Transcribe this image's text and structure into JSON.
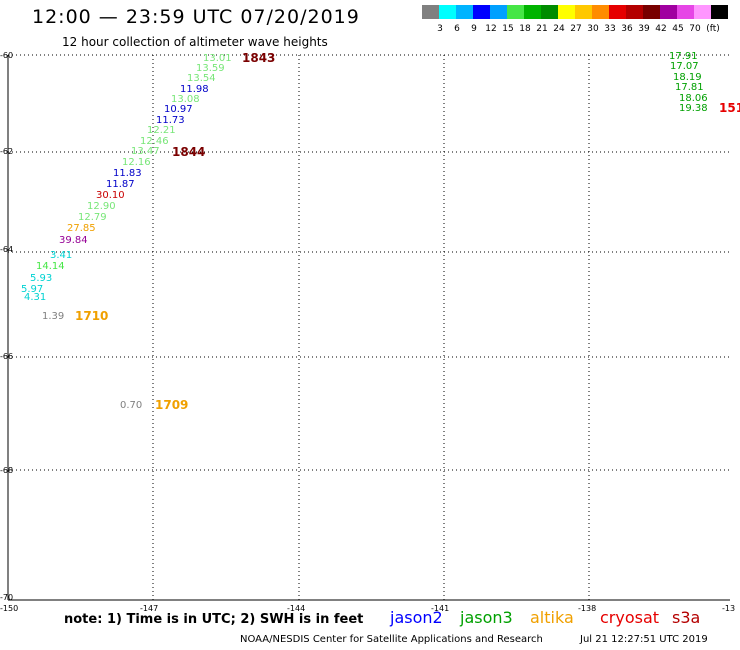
{
  "header": {
    "title": "12:00 — 23:59 UTC 07/20/2019",
    "subtitle": "12 hour collection of altimeter wave heights"
  },
  "legend_scale": {
    "colors": [
      "#808080",
      "#00ffff",
      "#00b4ff",
      "#0000ff",
      "#00a0ff",
      "#46e646",
      "#00b400",
      "#008c00",
      "#ffff00",
      "#ffc800",
      "#ff8c00",
      "#e60000",
      "#b40000",
      "#780000",
      "#a000a0",
      "#e646e6",
      "#ff96ff",
      "#000000"
    ],
    "labels": [
      "3",
      "6",
      "9",
      "12",
      "15",
      "18",
      "21",
      "24",
      "27",
      "30",
      "33",
      "36",
      "39",
      "42",
      "45",
      "70",
      "(ft)"
    ]
  },
  "axes": {
    "lat_labels": [
      "-60",
      "-62",
      "-64",
      "-66",
      "-68",
      "-70"
    ],
    "lon_labels": [
      "-150",
      "-147",
      "-144",
      "-141",
      "-138",
      "-13"
    ]
  },
  "points": [
    {
      "v": "13.01",
      "c": "#78e678"
    },
    {
      "v": "13.59",
      "c": "#78e678"
    },
    {
      "v": "13.54",
      "c": "#78e678"
    },
    {
      "v": "11.98",
      "c": "#0000c8"
    },
    {
      "v": "13.08",
      "c": "#78e678"
    },
    {
      "v": "10.97",
      "c": "#0000c8"
    },
    {
      "v": "11.73",
      "c": "#0000c8"
    },
    {
      "v": "12.21",
      "c": "#78e678"
    },
    {
      "v": "12.46",
      "c": "#78e678"
    },
    {
      "v": "13.47",
      "c": "#78e678"
    },
    {
      "v": "12.16",
      "c": "#78e678"
    },
    {
      "v": "11.83",
      "c": "#0000c8"
    },
    {
      "v": "11.87",
      "c": "#0000c8"
    },
    {
      "v": "30.10",
      "c": "#c80000"
    },
    {
      "v": "12.90",
      "c": "#78e678"
    },
    {
      "v": "12.79",
      "c": "#78e678"
    },
    {
      "v": "27.85",
      "c": "#f0a000"
    },
    {
      "v": "39.84",
      "c": "#960096"
    },
    {
      "v": "3.41",
      "c": "#00d2d2"
    },
    {
      "v": "14.14",
      "c": "#46e646"
    },
    {
      "v": "5.93",
      "c": "#00d2d2"
    },
    {
      "v": "5.97",
      "c": "#00d2d2"
    },
    {
      "v": "4.31",
      "c": "#00d2d2"
    },
    {
      "v": "1.39",
      "c": "#808080"
    },
    {
      "v": "0.70",
      "c": "#808080"
    },
    {
      "v": "17.91",
      "c": "#00a000"
    },
    {
      "v": "17.07",
      "c": "#00a000"
    },
    {
      "v": "18.19",
      "c": "#00a000"
    },
    {
      "v": "17.81",
      "c": "#00a000"
    },
    {
      "v": "18.06",
      "c": "#00a000"
    },
    {
      "v": "19.38",
      "c": "#00a000"
    }
  ],
  "time_labels": [
    {
      "v": "1843",
      "c": "#7a0000"
    },
    {
      "v": "1844",
      "c": "#7a0000"
    },
    {
      "v": "1710",
      "c": "#f0a000"
    },
    {
      "v": "1709",
      "c": "#f0a000"
    },
    {
      "v": "151",
      "c": "#e60000"
    }
  ],
  "footer": {
    "note": "note: 1) Time is in UTC; 2) SWH is in feet",
    "satellites": [
      {
        "name": "jason2",
        "c": "#0000ff"
      },
      {
        "name": "jason3",
        "c": "#00a000"
      },
      {
        "name": "altika",
        "c": "#f0a000"
      },
      {
        "name": "cryosat",
        "c": "#e60000"
      },
      {
        "name": "s3a",
        "c": "#b40000"
      }
    ],
    "credit": "NOAA/NESDIS Center for Satellite Applications and Research",
    "stamp": "Jul 21 12:27:51 UTC 2019"
  }
}
